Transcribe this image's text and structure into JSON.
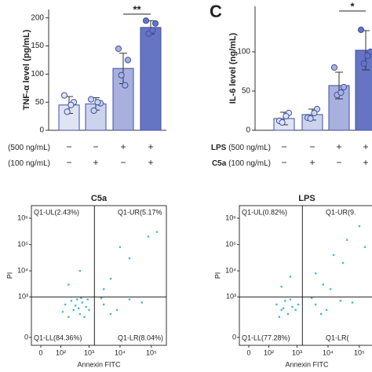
{
  "chart_data": [
    {
      "type": "bar",
      "ylabel": "TNF-α level (pg/mL)",
      "categories": [
        null,
        null,
        null,
        null
      ],
      "values": [
        45,
        47,
        110,
        183
      ],
      "errors": [
        15,
        11,
        27,
        12
      ],
      "points": [
        [
          62,
          50,
          33,
          45
        ],
        [
          55,
          48,
          35,
          50
        ],
        [
          145,
          125,
          98,
          80
        ],
        [
          195,
          190,
          172,
          178
        ]
      ],
      "colors": [
        "#dfe4f2",
        "#cbd3ed",
        "#a8b1de",
        "#6674c4"
      ],
      "edge_color": "#3f4ea3",
      "ylim": [
        0,
        215
      ],
      "yticks": [
        0,
        50,
        100,
        150,
        200
      ],
      "significance": "**",
      "conditions": [
        {
          "dose": "(500 ng/mL)",
          "marks": [
            "−",
            "−",
            "+",
            "+"
          ]
        },
        {
          "dose": "(100 ng/mL)",
          "marks": [
            "−",
            "+",
            "−",
            "+"
          ]
        }
      ]
    },
    {
      "type": "bar",
      "panel": "C",
      "ylabel": "IL-6 level (ng/mL)",
      "categories": [
        null,
        null,
        null,
        null
      ],
      "values": [
        15,
        20,
        57,
        102
      ],
      "errors": [
        8,
        7,
        17,
        25
      ],
      "points": [
        [
          12,
          22,
          10,
          18
        ],
        [
          16,
          27,
          15,
          22
        ],
        [
          80,
          55,
          45,
          48
        ],
        [
          128,
          100,
          85,
          95
        ]
      ],
      "colors": [
        "#dfe4f2",
        "#cbd3ed",
        "#a8b1de",
        "#6674c4"
      ],
      "edge_color": "#3f4ea3",
      "ylim": [
        0,
        158
      ],
      "yticks": [
        0,
        50,
        100
      ],
      "significance": "*",
      "conditions": [
        {
          "agent": "LPS",
          "dose": "(500 ng/mL)",
          "marks": [
            "−",
            "−",
            "+",
            "+"
          ]
        },
        {
          "agent": "C5a",
          "dose": "(100 ng/mL)",
          "marks": [
            "−",
            "+",
            "−",
            "+"
          ]
        }
      ]
    },
    {
      "type": "scatter",
      "title": "C5a",
      "xlabel": "Annexin FITC",
      "ylabel": "PI",
      "scale": "symlog",
      "color": "#4db6dc",
      "xlim": [
        -30,
        300000
      ],
      "ylim": [
        -30,
        3000000
      ],
      "xticks": [
        0,
        {
          "value": 100,
          "label": "10²"
        },
        {
          "value": 1000,
          "label": "10³"
        },
        {
          "value": 10000,
          "label": "10⁴"
        },
        {
          "value": 100000,
          "label": "10⁵"
        }
      ],
      "yticks": [
        0,
        {
          "value": 1000,
          "label": "10³"
        },
        {
          "value": 10000,
          "label": "10⁴"
        },
        {
          "value": 100000,
          "label": "10⁵"
        },
        {
          "value": 1000000,
          "label": "10⁶"
        }
      ],
      "gate_x": 1500,
      "gate_y": 1000,
      "quadrants": {
        "UL": "Q1-UL(2.43%)",
        "UR": "Q1-UR(5.17%",
        "LL": "Q1-LL(84.36%)",
        "LR": "Q1-LR(8.04%)"
      },
      "x": [
        300,
        500,
        150,
        800,
        400,
        200,
        600,
        1000,
        250,
        700,
        350,
        900,
        120,
        450,
        550,
        3000,
        8000,
        20000,
        5000,
        50000,
        2500,
        5000,
        20000,
        80000,
        3000,
        10000,
        150000,
        200,
        500
      ],
      "y": [
        300,
        200,
        500,
        400,
        800,
        150,
        600,
        300,
        700,
        150,
        450,
        800,
        250,
        350,
        900,
        500,
        300,
        800,
        200,
        600,
        900,
        5000,
        30000,
        200000,
        2000,
        80000,
        300000,
        3000,
        10000
      ]
    },
    {
      "type": "scatter",
      "title": "LPS",
      "xlabel": "Annexin FITC",
      "ylabel": "PI",
      "scale": "symlog",
      "color": "#4db6dc",
      "xlim": [
        -30,
        300000
      ],
      "ylim": [
        -30,
        3000000
      ],
      "xticks": [
        0,
        {
          "value": 100,
          "label": "10²"
        },
        {
          "value": 1000,
          "label": "10³"
        },
        {
          "value": 10000,
          "label": "10⁴"
        },
        {
          "value": 100000,
          "label": "10⁵"
        }
      ],
      "yticks": [
        0,
        {
          "value": 1000,
          "label": "10³"
        },
        {
          "value": 10000,
          "label": "10⁴"
        },
        {
          "value": 100000,
          "label": "10⁵"
        },
        {
          "value": 1000000,
          "label": "10⁶"
        }
      ],
      "gate_x": 1500,
      "gate_y": 1000,
      "quadrants": {
        "UL": "Q1-UL(0.82%)",
        "UR": "Q1-UR(9.",
        "LL": "Q1-LL(77.28%)",
        "LR": "Q1-LR("
      },
      "x": [
        300,
        500,
        200,
        700,
        400,
        900,
        250,
        600,
        1100,
        350,
        4000,
        9000,
        25000,
        6000,
        60000,
        3000,
        12000,
        4000,
        15000,
        40000,
        100000,
        7000,
        30000,
        150000,
        300,
        600
      ],
      "y": [
        300,
        200,
        500,
        400,
        700,
        300,
        150,
        800,
        500,
        350,
        500,
        300,
        700,
        200,
        600,
        900,
        2000,
        8000,
        40000,
        150000,
        500000,
        3000,
        20000,
        80000,
        2500,
        6000
      ]
    }
  ]
}
